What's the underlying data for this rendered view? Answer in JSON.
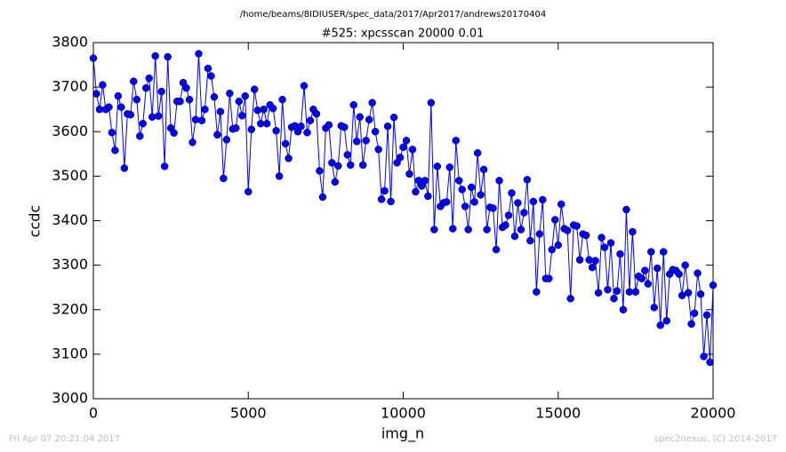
{
  "chart_data": {
    "type": "line",
    "suptitle": "/home/beams/8IDIUSER/spec_data/2017/Apr2017/andrews20170404",
    "title": "#525: xpcsscan 20000 0.01",
    "x_label": "img_n",
    "y_label": "ccdc",
    "footer_left": "Fri Apr 07 20:21:04 2017",
    "footer_right": "spec2nexus, (C) 2014-2017",
    "color": "#0000ff",
    "xlim": [
      0,
      20000
    ],
    "xticks": [
      0,
      5000,
      10000,
      15000,
      20000
    ],
    "ylim": [
      3000,
      3800
    ],
    "yticks": [
      3000,
      3100,
      3200,
      3300,
      3400,
      3500,
      3600,
      3700,
      3800
    ],
    "x": [
      0,
      100,
      200,
      300,
      400,
      500,
      600,
      700,
      800,
      900,
      1000,
      1100,
      1200,
      1300,
      1400,
      1500,
      1600,
      1700,
      1800,
      1900,
      2000,
      2100,
      2200,
      2300,
      2400,
      2500,
      2600,
      2700,
      2800,
      2900,
      3000,
      3100,
      3200,
      3300,
      3400,
      3500,
      3600,
      3700,
      3800,
      3900,
      4000,
      4100,
      4200,
      4300,
      4400,
      4500,
      4600,
      4700,
      4800,
      4900,
      5000,
      5100,
      5200,
      5300,
      5400,
      5500,
      5600,
      5700,
      5800,
      5900,
      6000,
      6100,
      6200,
      6300,
      6400,
      6500,
      6600,
      6700,
      6800,
      6900,
      7000,
      7100,
      7200,
      7300,
      7400,
      7500,
      7600,
      7700,
      7800,
      7900,
      8000,
      8100,
      8200,
      8300,
      8400,
      8500,
      8600,
      8700,
      8800,
      8900,
      9000,
      9100,
      9200,
      9300,
      9400,
      9500,
      9600,
      9700,
      9800,
      9900,
      10000,
      10100,
      10200,
      10300,
      10400,
      10500,
      10600,
      10700,
      10800,
      10900,
      11000,
      11100,
      11200,
      11300,
      11400,
      11500,
      11600,
      11700,
      11800,
      11900,
      12000,
      12100,
      12200,
      12300,
      12400,
      12500,
      12600,
      12700,
      12800,
      12900,
      13000,
      13100,
      13200,
      13300,
      13400,
      13500,
      13600,
      13700,
      13800,
      13900,
      14000,
      14100,
      14200,
      14300,
      14400,
      14500,
      14600,
      14700,
      14800,
      14900,
      15000,
      15100,
      15200,
      15300,
      15400,
      15500,
      15600,
      15700,
      15800,
      15900,
      16000,
      16100,
      16200,
      16300,
      16400,
      16500,
      16600,
      16700,
      16800,
      16900,
      17000,
      17100,
      17200,
      17300,
      17400,
      17500,
      17600,
      17700,
      17800,
      17900,
      18000,
      18100,
      18200,
      18300,
      18400,
      18500,
      18600,
      18700,
      18800,
      18900,
      19000,
      19100,
      19200,
      19300,
      19400,
      19500,
      19600,
      19700,
      19800,
      19900,
      20000
    ],
    "values": [
      3765,
      3685,
      3650,
      3705,
      3650,
      3655,
      3598,
      3558,
      3680,
      3655,
      3518,
      3640,
      3638,
      3713,
      3672,
      3590,
      3618,
      3698,
      3720,
      3633,
      3770,
      3635,
      3690,
      3522,
      3768,
      3608,
      3597,
      3668,
      3668,
      3710,
      3698,
      3672,
      3576,
      3627,
      3775,
      3625,
      3650,
      3742,
      3725,
      3678,
      3593,
      3645,
      3495,
      3582,
      3686,
      3606,
      3608,
      3668,
      3636,
      3680,
      3465,
      3605,
      3695,
      3648,
      3618,
      3650,
      3618,
      3660,
      3652,
      3602,
      3500,
      3672,
      3573,
      3540,
      3610,
      3613,
      3600,
      3612,
      3703,
      3598,
      3625,
      3650,
      3640,
      3512,
      3453,
      3608,
      3615,
      3530,
      3487,
      3523,
      3613,
      3610,
      3548,
      3525,
      3660,
      3578,
      3633,
      3525,
      3580,
      3627,
      3665,
      3600,
      3560,
      3448,
      3467,
      3612,
      3443,
      3632,
      3530,
      3542,
      3565,
      3580,
      3505,
      3560,
      3465,
      3490,
      3478,
      3490,
      3455,
      3665,
      3380,
      3522,
      3432,
      3440,
      3442,
      3520,
      3382,
      3580,
      3490,
      3470,
      3432,
      3380,
      3475,
      3442,
      3552,
      3458,
      3515,
      3380,
      3430,
      3428,
      3335,
      3490,
      3385,
      3390,
      3412,
      3462,
      3365,
      3440,
      3380,
      3418,
      3492,
      3355,
      3443,
      3240,
      3370,
      3447,
      3270,
      3270,
      3335,
      3402,
      3345,
      3437,
      3382,
      3378,
      3225,
      3390,
      3388,
      3312,
      3370,
      3367,
      3312,
      3295,
      3310,
      3238,
      3362,
      3340,
      3245,
      3350,
      3225,
      3242,
      3325,
      3200,
      3425,
      3240,
      3375,
      3240,
      3275,
      3270,
      3288,
      3258,
      3330,
      3205,
      3293,
      3165,
      3330,
      3175,
      3280,
      3290,
      3288,
      3280,
      3232,
      3300,
      3238,
      3168,
      3192,
      3282,
      3235,
      3095,
      3188,
      3082,
      3255
    ]
  }
}
